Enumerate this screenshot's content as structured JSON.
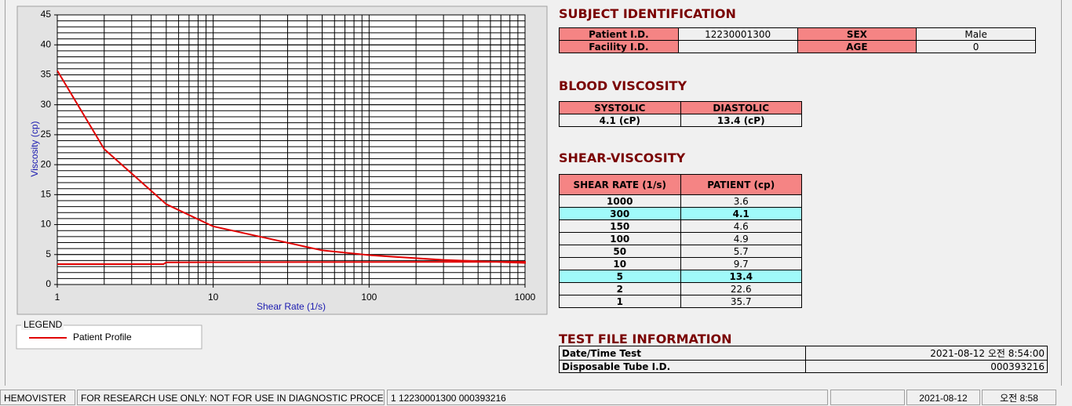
{
  "chart_data": {
    "type": "line",
    "xlabel": "Shear Rate (1/s)",
    "ylabel": "Viscosity (cp)",
    "x_log": true,
    "xlim": [
      1,
      1000
    ],
    "xticks": [
      1,
      10,
      100,
      1000
    ],
    "ylim": [
      0,
      45
    ],
    "yticks": [
      0,
      5,
      10,
      15,
      20,
      25,
      30,
      35,
      40,
      45
    ],
    "grid": true,
    "minor_grid": true,
    "legend_title": "LEGEND",
    "series": [
      {
        "name": "Patient Profile",
        "color": "#e00000",
        "x": [
          1,
          2,
          5,
          10,
          50,
          100,
          150,
          300,
          1000,
          1000,
          5,
          4.8,
          1
        ],
        "values": [
          35.7,
          22.6,
          13.4,
          9.7,
          5.7,
          4.9,
          4.6,
          4.1,
          3.6,
          3.8,
          3.7,
          3.4,
          3.4
        ]
      }
    ]
  },
  "subject": {
    "title": "SUBJECT IDENTIFICATION",
    "rows": [
      [
        "Patient I.D.",
        "12230001300",
        "SEX",
        "Male"
      ],
      [
        "Facility I.D.",
        null,
        "AGE",
        0
      ]
    ]
  },
  "blood": {
    "title": "BLOOD VISCOSITY",
    "headers": [
      "SYSTOLIC",
      "DIASTOLIC"
    ],
    "values": [
      "4.1 (cP)",
      "13.4 (cP)"
    ]
  },
  "shear": {
    "title": "SHEAR-VISCOSITY",
    "headers": [
      "SHEAR RATE (1/s)",
      "PATIENT (cp)"
    ],
    "rows": [
      [
        1000,
        3.6
      ],
      [
        300,
        4.1
      ],
      [
        150,
        4.6
      ],
      [
        100,
        4.9
      ],
      [
        50,
        5.7
      ],
      [
        10,
        9.7
      ],
      [
        5,
        13.4
      ],
      [
        2,
        22.6
      ],
      [
        1,
        35.7
      ]
    ]
  },
  "test_file": {
    "title": "TEST FILE INFORMATION",
    "rows": [
      [
        "Date/Time Test",
        "2021-08-12   오전 8:54:00"
      ],
      [
        "Disposable Tube I.D.",
        "000393216"
      ]
    ]
  },
  "status_bar": [
    "HEMOVISTER",
    "FOR RESEARCH USE ONLY: NOT FOR USE IN DIAGNOSTIC PROCEDURES",
    "1  12230001300  000393216",
    "2021-08-12",
    "오전 8:58"
  ]
}
